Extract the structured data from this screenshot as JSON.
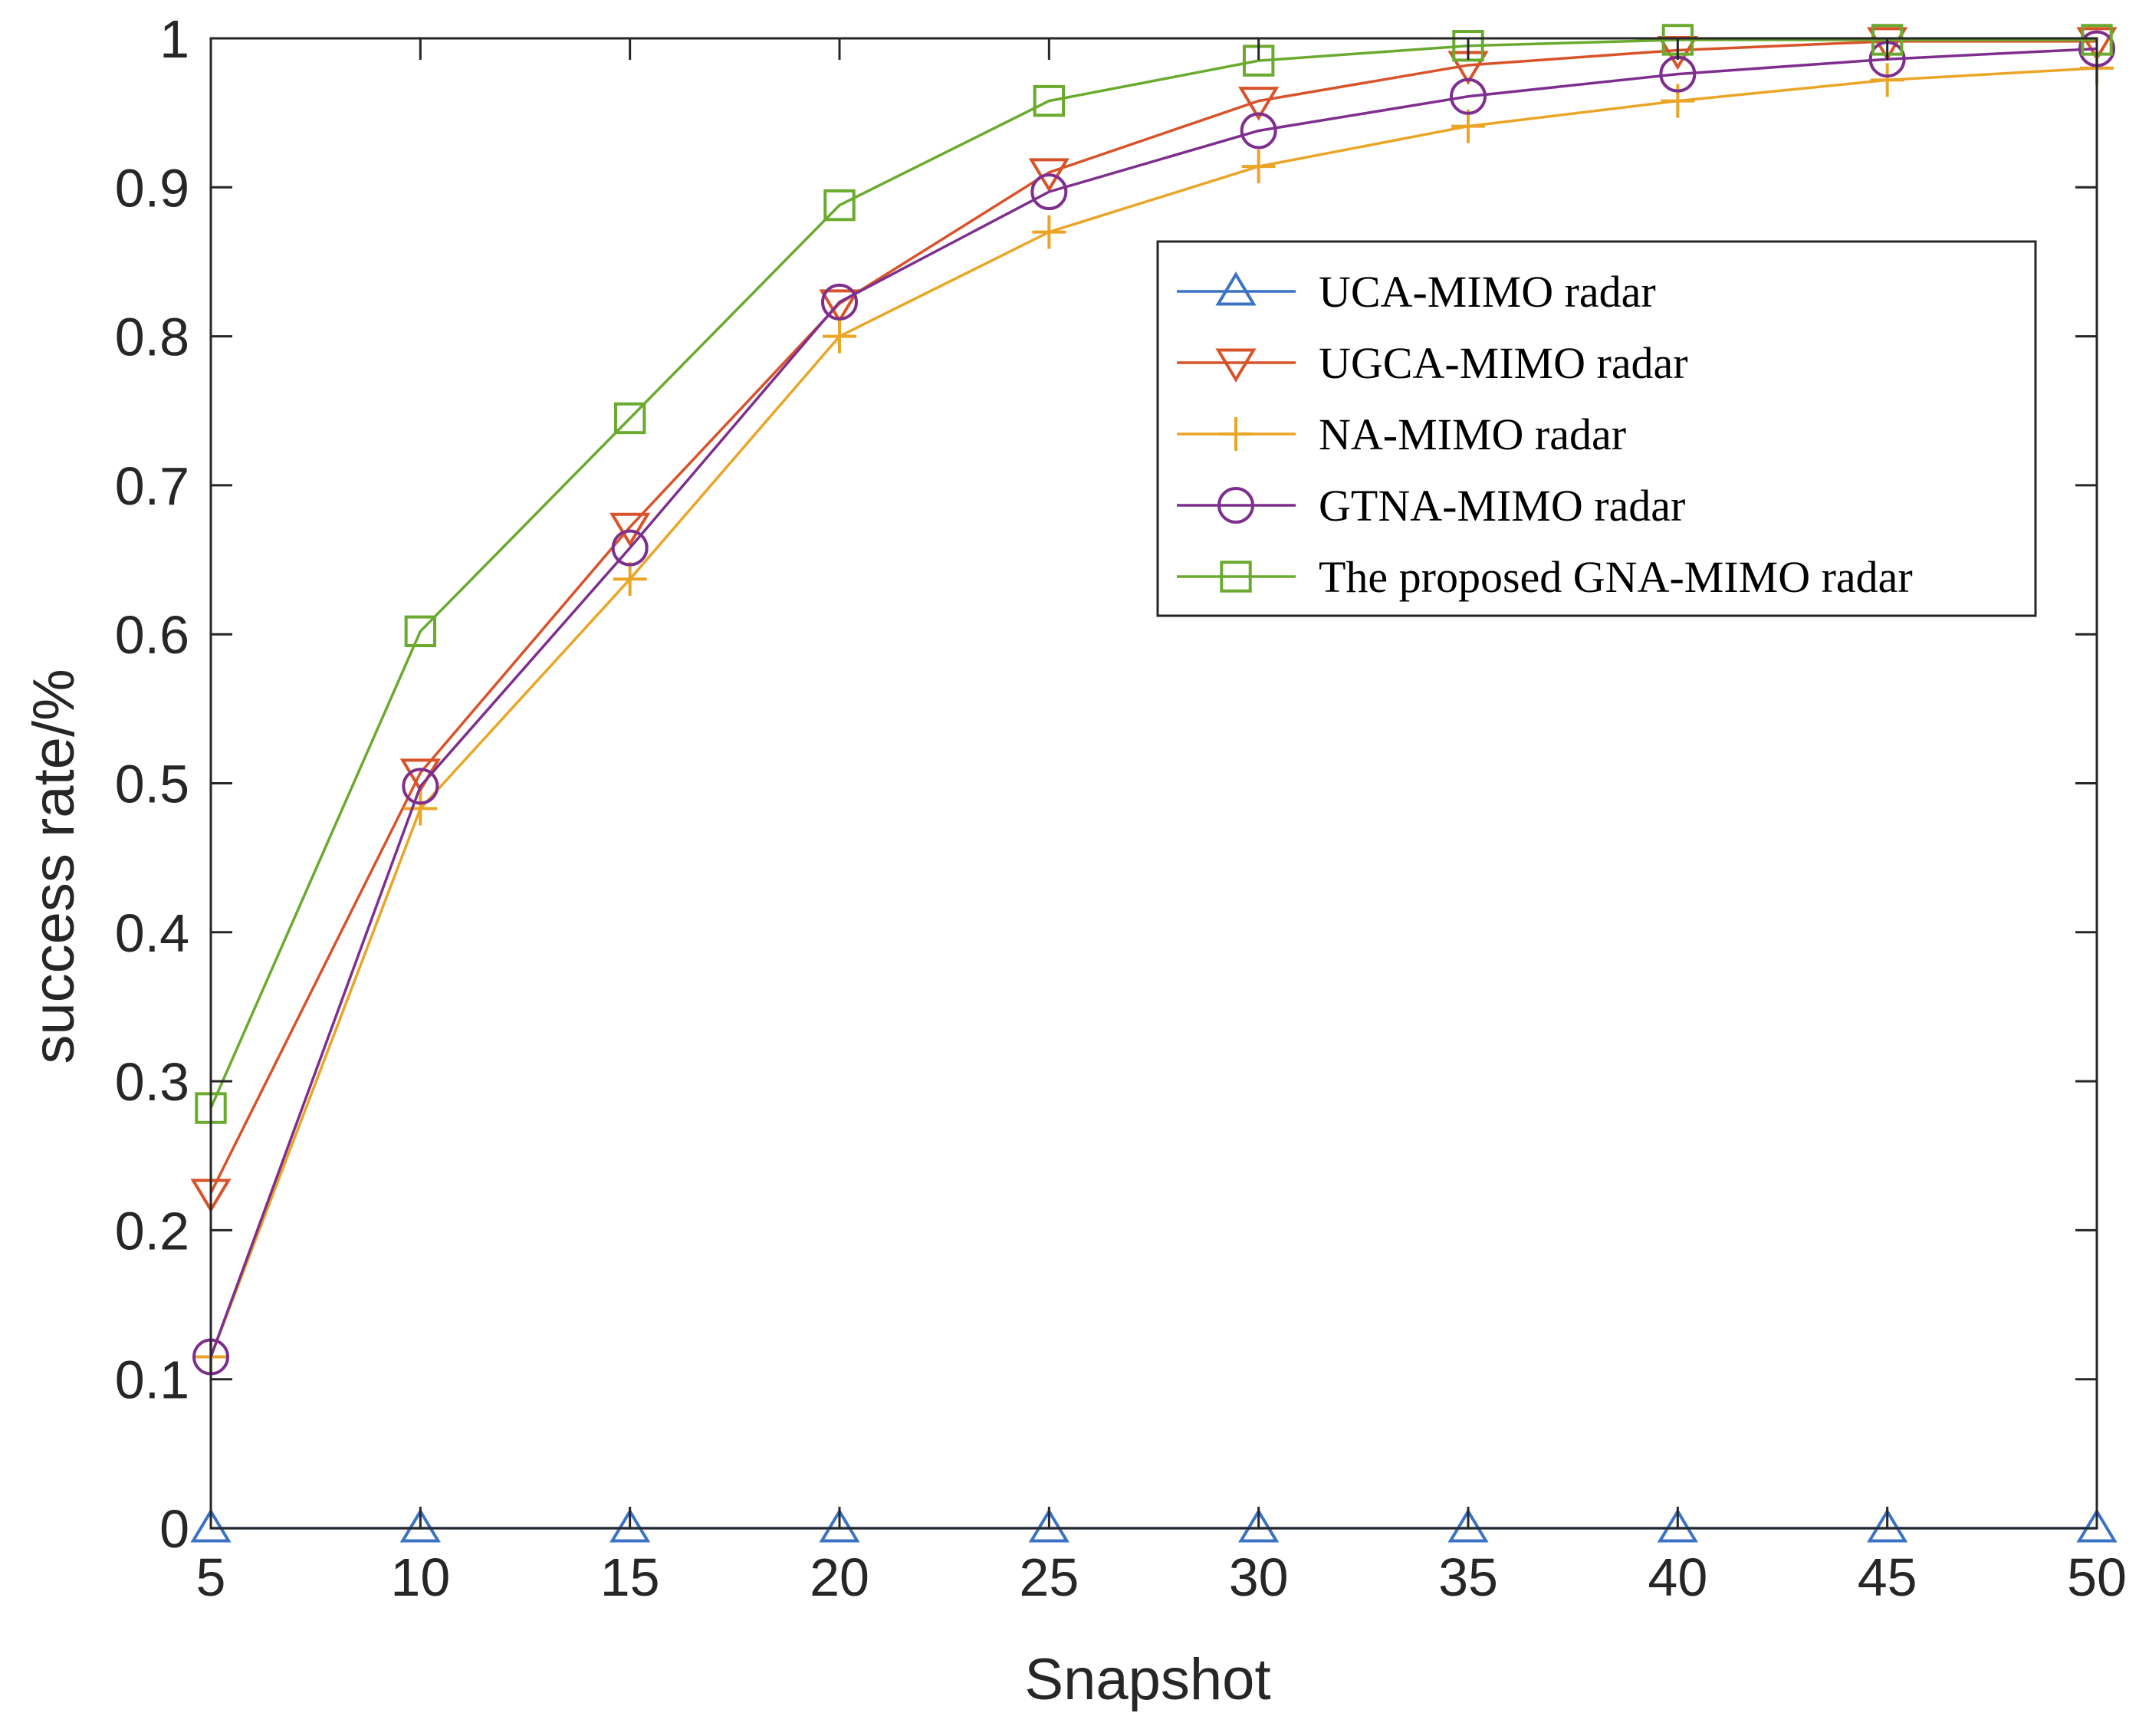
{
  "chart_data": {
    "type": "line",
    "title": "",
    "xlabel": "Snapshot",
    "ylabel": "success rate/%",
    "x": [
      5,
      10,
      15,
      20,
      25,
      30,
      35,
      40,
      45,
      50
    ],
    "xlim": [
      5,
      50
    ],
    "ylim": [
      0,
      1
    ],
    "xticks": [
      "5",
      "10",
      "15",
      "20",
      "25",
      "30",
      "35",
      "40",
      "45",
      "50"
    ],
    "yticks": [
      "0",
      "0.1",
      "0.2",
      "0.3",
      "0.4",
      "0.5",
      "0.6",
      "0.7",
      "0.8",
      "0.9",
      "1"
    ],
    "grid": false,
    "legend_position": "upper-right",
    "series": [
      {
        "name": "UCA-MIMO radar",
        "marker": "triangle-up",
        "color": "#3B73C4",
        "values": [
          0,
          0,
          0,
          0,
          0,
          0,
          0,
          0,
          0,
          0
        ]
      },
      {
        "name": "UGCA-MIMO radar",
        "marker": "triangle-down",
        "color": "#D9532A",
        "values": [
          0.225,
          0.507,
          0.672,
          0.822,
          0.91,
          0.958,
          0.982,
          0.992,
          0.998,
          0.998
        ]
      },
      {
        "name": "NA-MIMO radar",
        "marker": "plus",
        "color": "#EBA526",
        "values": [
          0.115,
          0.483,
          0.637,
          0.8,
          0.87,
          0.914,
          0.941,
          0.958,
          0.972,
          0.98
        ]
      },
      {
        "name": "GTNA-MIMO radar",
        "marker": "circle",
        "color": "#7E2F8E",
        "values": [
          0.115,
          0.498,
          0.658,
          0.823,
          0.897,
          0.938,
          0.961,
          0.976,
          0.986,
          0.993
        ]
      },
      {
        "name": "The proposed GNA-MIMO radar",
        "marker": "square",
        "color": "#6AAA2E",
        "values": [
          0.282,
          0.602,
          0.745,
          0.888,
          0.958,
          0.985,
          0.995,
          0.999,
          0.999,
          0.999
        ]
      }
    ]
  }
}
